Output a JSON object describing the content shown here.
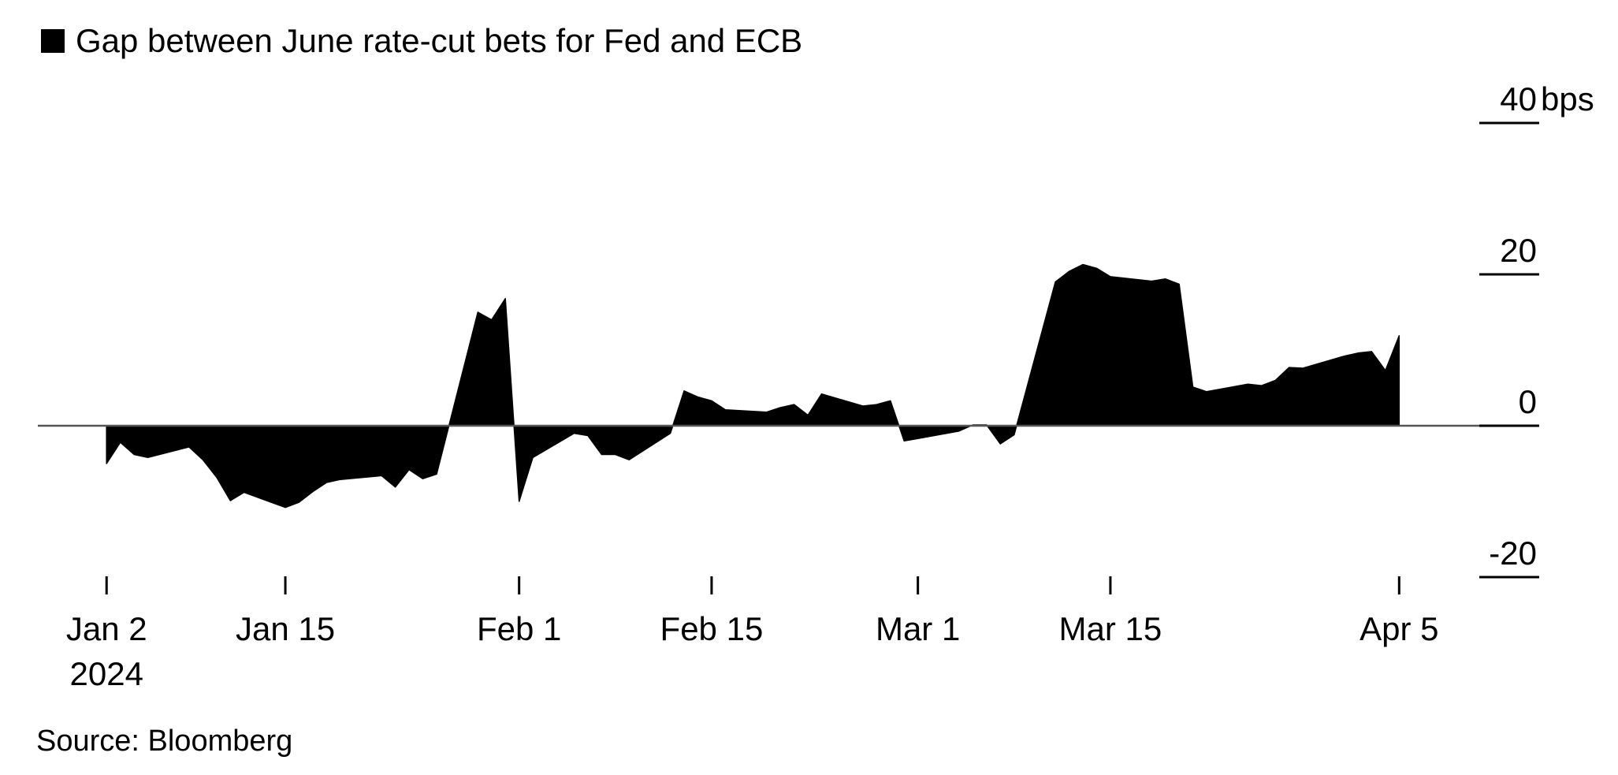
{
  "chart_data": {
    "type": "area",
    "legend": "Gap between June rate-cut bets for Fed and ECB",
    "source": "Source: Bloomberg",
    "y_unit": "bps",
    "ylim": [
      -20,
      40
    ],
    "y_ticks": [
      {
        "value": 40,
        "label": "40"
      },
      {
        "value": 20,
        "label": "20"
      },
      {
        "value": 0,
        "label": "0"
      },
      {
        "value": -20,
        "label": "-20"
      }
    ],
    "x_ticks": [
      {
        "date": "2024-01-02",
        "label": "Jan 2",
        "sublabel": "2024"
      },
      {
        "date": "2024-01-15",
        "label": "Jan 15"
      },
      {
        "date": "2024-02-01",
        "label": "Feb 1"
      },
      {
        "date": "2024-02-15",
        "label": "Feb 15"
      },
      {
        "date": "2024-03-01",
        "label": "Mar 1"
      },
      {
        "date": "2024-03-15",
        "label": "Mar 15"
      },
      {
        "date": "2024-04-05",
        "label": "Apr 5"
      }
    ],
    "x_range": [
      "2023-12-28",
      "2024-04-11"
    ],
    "color": "#000000",
    "points": [
      {
        "x": "2024-01-02",
        "y": -5
      },
      {
        "x": "2024-01-03",
        "y": -2.2
      },
      {
        "x": "2024-01-04",
        "y": -3.8
      },
      {
        "x": "2024-01-05",
        "y": -4.2
      },
      {
        "x": "2024-01-08",
        "y": -2.8
      },
      {
        "x": "2024-01-09",
        "y": -4.5
      },
      {
        "x": "2024-01-10",
        "y": -6.8
      },
      {
        "x": "2024-01-11",
        "y": -9.9
      },
      {
        "x": "2024-01-12",
        "y": -8.8
      },
      {
        "x": "2024-01-15",
        "y": -10.8
      },
      {
        "x": "2024-01-16",
        "y": -10.1
      },
      {
        "x": "2024-01-17",
        "y": -8.7
      },
      {
        "x": "2024-01-18",
        "y": -7.5
      },
      {
        "x": "2024-01-19",
        "y": -7.1
      },
      {
        "x": "2024-01-22",
        "y": -6.6
      },
      {
        "x": "2024-01-23",
        "y": -8.1
      },
      {
        "x": "2024-01-24",
        "y": -5.8
      },
      {
        "x": "2024-01-25",
        "y": -7
      },
      {
        "x": "2024-01-26",
        "y": -6.4
      },
      {
        "x": "2024-01-29",
        "y": 15
      },
      {
        "x": "2024-01-30",
        "y": 14
      },
      {
        "x": "2024-01-31",
        "y": 16.8
      },
      {
        "x": "2024-02-01",
        "y": -10
      },
      {
        "x": "2024-02-02",
        "y": -4.2
      },
      {
        "x": "2024-02-05",
        "y": -1
      },
      {
        "x": "2024-02-06",
        "y": -1.3
      },
      {
        "x": "2024-02-07",
        "y": -3.8
      },
      {
        "x": "2024-02-08",
        "y": -3.8
      },
      {
        "x": "2024-02-09",
        "y": -4.5
      },
      {
        "x": "2024-02-12",
        "y": -1
      },
      {
        "x": "2024-02-13",
        "y": 4.6
      },
      {
        "x": "2024-02-14",
        "y": 3.8
      },
      {
        "x": "2024-02-15",
        "y": 3.3
      },
      {
        "x": "2024-02-16",
        "y": 2.1
      },
      {
        "x": "2024-02-19",
        "y": 1.8
      },
      {
        "x": "2024-02-20",
        "y": 2.4
      },
      {
        "x": "2024-02-21",
        "y": 2.8
      },
      {
        "x": "2024-02-22",
        "y": 1.4
      },
      {
        "x": "2024-02-23",
        "y": 4.2
      },
      {
        "x": "2024-02-26",
        "y": 2.6
      },
      {
        "x": "2024-02-27",
        "y": 2.8
      },
      {
        "x": "2024-02-28",
        "y": 3.3
      },
      {
        "x": "2024-02-29",
        "y": -2
      },
      {
        "x": "2024-03-01",
        "y": -1.7
      },
      {
        "x": "2024-03-04",
        "y": -0.7
      },
      {
        "x": "2024-03-05",
        "y": 0.1
      },
      {
        "x": "2024-03-06",
        "y": 0.1
      },
      {
        "x": "2024-03-07",
        "y": -2.4
      },
      {
        "x": "2024-03-08",
        "y": -1.2
      },
      {
        "x": "2024-03-11",
        "y": 19
      },
      {
        "x": "2024-03-12",
        "y": 20.4
      },
      {
        "x": "2024-03-13",
        "y": 21.3
      },
      {
        "x": "2024-03-14",
        "y": 20.8
      },
      {
        "x": "2024-03-15",
        "y": 19.7
      },
      {
        "x": "2024-03-18",
        "y": 19.1
      },
      {
        "x": "2024-03-19",
        "y": 19.4
      },
      {
        "x": "2024-03-20",
        "y": 18.7
      },
      {
        "x": "2024-03-21",
        "y": 5.1
      },
      {
        "x": "2024-03-22",
        "y": 4.5
      },
      {
        "x": "2024-03-25",
        "y": 5.5
      },
      {
        "x": "2024-03-26",
        "y": 5.3
      },
      {
        "x": "2024-03-27",
        "y": 6
      },
      {
        "x": "2024-03-28",
        "y": 7.7
      },
      {
        "x": "2024-03-29",
        "y": 7.6
      },
      {
        "x": "2024-04-01",
        "y": 9.2
      },
      {
        "x": "2024-04-02",
        "y": 9.6
      },
      {
        "x": "2024-04-03",
        "y": 9.8
      },
      {
        "x": "2024-04-04",
        "y": 7.3
      },
      {
        "x": "2024-04-05",
        "y": 11.9
      }
    ]
  }
}
